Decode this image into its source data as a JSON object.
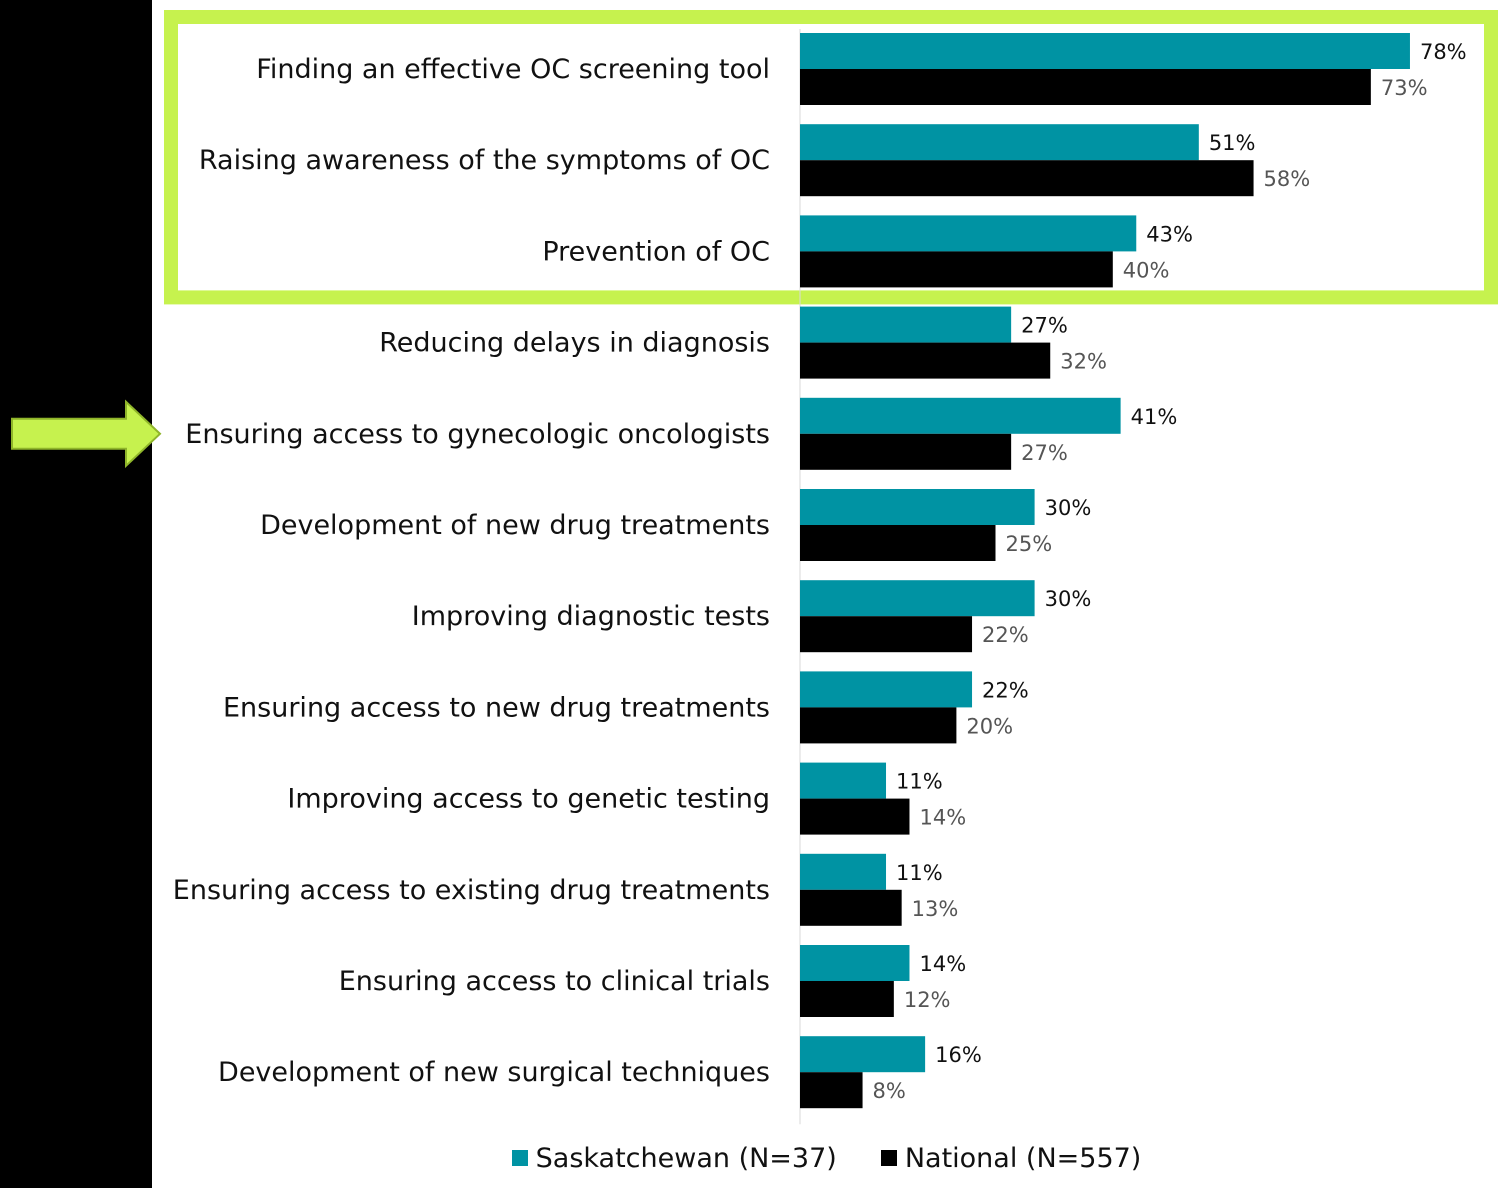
{
  "chart_data": {
    "type": "bar",
    "orientation": "horizontal",
    "categories": [
      "Finding an effective OC screening tool",
      "Raising awareness of the symptoms of OC",
      "Prevention of OC",
      "Reducing delays in diagnosis",
      "Ensuring access to gynecologic oncologists",
      "Development of new drug treatments",
      "Improving diagnostic tests",
      "Ensuring access to new drug treatments",
      "Improving access to genetic testing",
      "Ensuring access to existing drug treatments",
      "Ensuring access to clinical trials",
      "Development of new surgical techniques"
    ],
    "series": [
      {
        "name": "Saskatchewan (N=37)",
        "color": "#0093A3",
        "values": [
          78,
          51,
          43,
          27,
          41,
          30,
          30,
          22,
          11,
          11,
          14,
          16
        ],
        "labels": [
          "78%",
          "51%",
          "43%",
          "27%",
          "41%",
          "30%",
          "30%",
          "22%",
          "11%",
          "11%",
          "14%",
          "16%"
        ]
      },
      {
        "name": "National (N=557)",
        "color": "#000000",
        "values": [
          73,
          58,
          40,
          32,
          27,
          25,
          22,
          20,
          14,
          13,
          12,
          8
        ],
        "labels": [
          "73%",
          "58%",
          "40%",
          "32%",
          "27%",
          "25%",
          "22%",
          "20%",
          "14%",
          "13%",
          "12%",
          "8%"
        ]
      }
    ],
    "xlim": [
      0,
      100
    ],
    "grid": false,
    "legend_position": "bottom",
    "highlight_color": "#C6F24E",
    "highlighted_categories": [
      0,
      1,
      2
    ],
    "arrow_category": 4
  }
}
